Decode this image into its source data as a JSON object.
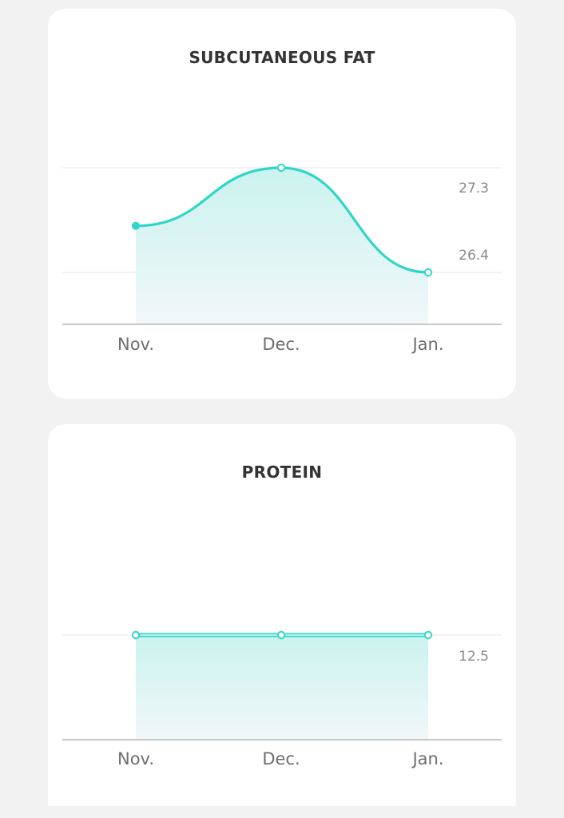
{
  "colors": {
    "line": "#2fd6c8",
    "fill_top": "#c8f2ee",
    "fill_bottom": "#f2f7f9",
    "grid": "#ececec",
    "axis": "#b5b5b5"
  },
  "chart_data": [
    {
      "type": "area",
      "title": "SUBCUTANEOUS FAT",
      "categories": [
        "Nov.",
        "Dec.",
        "Jan."
      ],
      "values": [
        26.8,
        27.3,
        26.4
      ],
      "reference_lines": [
        {
          "value": 27.3,
          "label": "27.3"
        },
        {
          "value": 26.4,
          "label": "26.4"
        }
      ],
      "ylim": [
        26.0,
        27.3
      ],
      "grid": true
    },
    {
      "type": "area",
      "title": "PROTEIN",
      "categories": [
        "Nov.",
        "Dec.",
        "Jan."
      ],
      "values": [
        12.5,
        12.5,
        12.5
      ],
      "reference_lines": [
        {
          "value": 12.5,
          "label": "12.5"
        }
      ],
      "ylim": [
        0,
        12.5
      ],
      "grid": true
    }
  ]
}
